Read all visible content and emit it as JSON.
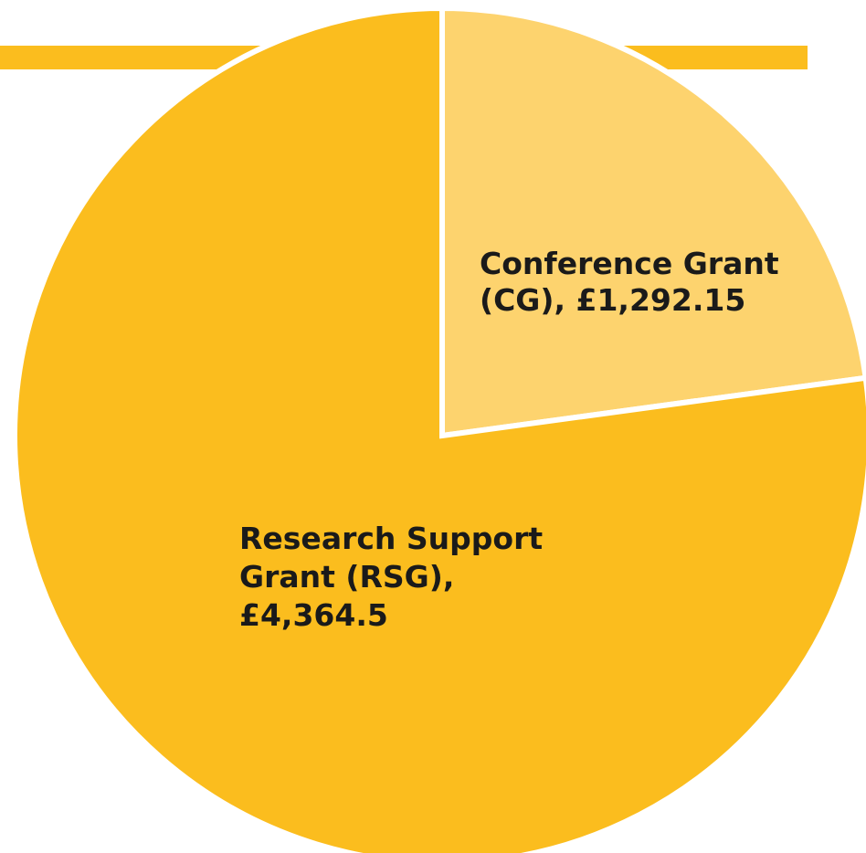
{
  "chart_data": {
    "type": "pie",
    "title": "",
    "start_angle_deg": 0,
    "direction": "clockwise",
    "slices": [
      {
        "label_lines": [
          "Conference Grant",
          "(CG), £1,292.15"
        ],
        "value": 1292.15,
        "color": "#FDD36E"
      },
      {
        "label_lines": [
          "Research Support",
          "Grant (RSG),",
          "£4,364.5"
        ],
        "value": 4364.5,
        "color": "#FBBD1E"
      }
    ],
    "accent_bar_color": "#FBBD1E",
    "separator_color": "#ffffff"
  }
}
